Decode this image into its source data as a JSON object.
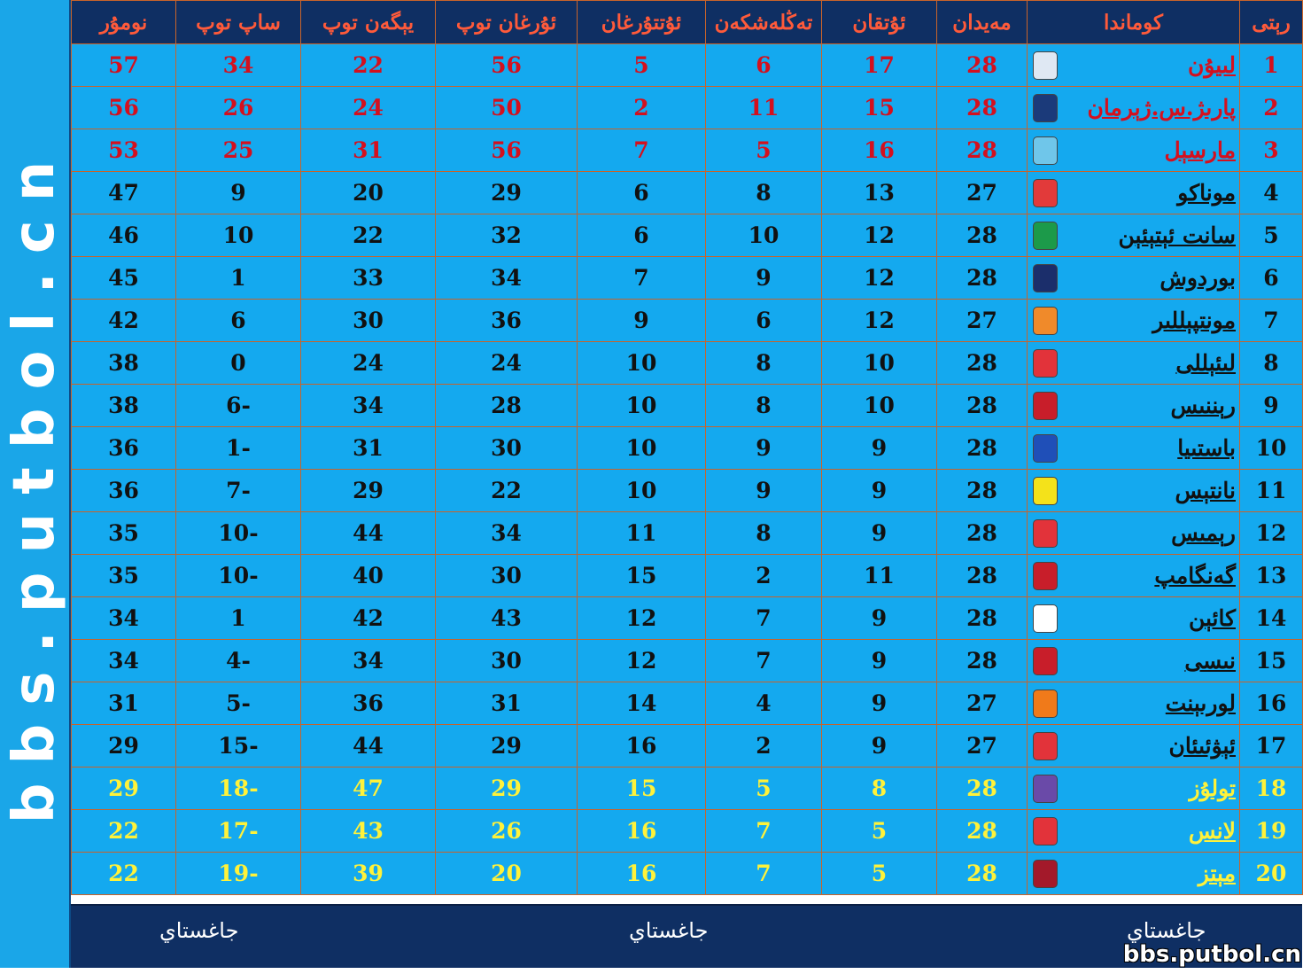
{
  "side_watermark": "bbs.putbol.cn",
  "headers": {
    "points": "نومۇر",
    "goal_diff": "ساپ توپ",
    "goals_against": "يېگەن توپ",
    "goals_for": "ئۇرغان توپ",
    "lost": "ئۇتتۇرغان",
    "drawn": "تەڭلەشكەن",
    "won": "ئۇتقان",
    "played": "مەيدان",
    "team": "كوماندا",
    "rank": "رېتى"
  },
  "rows": [
    {
      "rank": "1",
      "team": "لىيۇن",
      "played": "28",
      "won": "17",
      "drawn": "6",
      "lost": "5",
      "gf": "56",
      "ga": "22",
      "gd": "34",
      "pts": "57",
      "style": "red",
      "logo_color": "#dfe8f3"
    },
    {
      "rank": "2",
      "team": "پارىژ.س.ژېرمان",
      "played": "28",
      "won": "15",
      "drawn": "11",
      "lost": "2",
      "gf": "50",
      "ga": "24",
      "gd": "26",
      "pts": "56",
      "style": "red",
      "logo_color": "#1b3a7a"
    },
    {
      "rank": "3",
      "team": "مارسېل",
      "played": "28",
      "won": "16",
      "drawn": "5",
      "lost": "7",
      "gf": "56",
      "ga": "31",
      "gd": "25",
      "pts": "53",
      "style": "red",
      "logo_color": "#6fc6ea"
    },
    {
      "rank": "4",
      "team": "موناكو",
      "played": "27",
      "won": "13",
      "drawn": "8",
      "lost": "6",
      "gf": "29",
      "ga": "20",
      "gd": "9",
      "pts": "47",
      "style": "",
      "logo_color": "#e23a3a"
    },
    {
      "rank": "5",
      "team": "سانت ئېتېئېن",
      "played": "28",
      "won": "12",
      "drawn": "10",
      "lost": "6",
      "gf": "32",
      "ga": "22",
      "gd": "10",
      "pts": "46",
      "style": "",
      "logo_color": "#1c9a4a"
    },
    {
      "rank": "6",
      "team": "بوردوش",
      "played": "28",
      "won": "12",
      "drawn": "9",
      "lost": "7",
      "gf": "34",
      "ga": "33",
      "gd": "1",
      "pts": "45",
      "style": "",
      "logo_color": "#1b2e6b"
    },
    {
      "rank": "7",
      "team": "مونتپېللىر",
      "played": "27",
      "won": "12",
      "drawn": "6",
      "lost": "9",
      "gf": "36",
      "ga": "30",
      "gd": "6",
      "pts": "42",
      "style": "",
      "logo_color": "#f08a2a"
    },
    {
      "rank": "8",
      "team": "لىئېللى",
      "played": "28",
      "won": "10",
      "drawn": "8",
      "lost": "10",
      "gf": "24",
      "ga": "24",
      "gd": "0",
      "pts": "38",
      "style": "",
      "logo_color": "#e2333a"
    },
    {
      "rank": "9",
      "team": "رېننىس",
      "played": "28",
      "won": "10",
      "drawn": "8",
      "lost": "10",
      "gf": "28",
      "ga": "34",
      "gd": "6-",
      "pts": "38",
      "style": "",
      "logo_color": "#c81e2a"
    },
    {
      "rank": "10",
      "team": "باستىيا",
      "played": "28",
      "won": "9",
      "drawn": "9",
      "lost": "10",
      "gf": "30",
      "ga": "31",
      "gd": "1-",
      "pts": "36",
      "style": "",
      "logo_color": "#1f4fb8"
    },
    {
      "rank": "11",
      "team": "نانتېس",
      "played": "28",
      "won": "9",
      "drawn": "9",
      "lost": "10",
      "gf": "22",
      "ga": "29",
      "gd": "7-",
      "pts": "36",
      "style": "",
      "logo_color": "#f4e21a"
    },
    {
      "rank": "12",
      "team": "رېمىس",
      "played": "28",
      "won": "9",
      "drawn": "8",
      "lost": "11",
      "gf": "34",
      "ga": "44",
      "gd": "10-",
      "pts": "35",
      "style": "",
      "logo_color": "#e2333a"
    },
    {
      "rank": "13",
      "team": "گەنگامپ",
      "played": "28",
      "won": "11",
      "drawn": "2",
      "lost": "15",
      "gf": "30",
      "ga": "40",
      "gd": "10-",
      "pts": "35",
      "style": "",
      "logo_color": "#c81e2a"
    },
    {
      "rank": "14",
      "team": "كائېن",
      "played": "28",
      "won": "9",
      "drawn": "7",
      "lost": "12",
      "gf": "43",
      "ga": "42",
      "gd": "1",
      "pts": "34",
      "style": "",
      "logo_color": "#ffffff"
    },
    {
      "rank": "15",
      "team": "نىسى",
      "played": "28",
      "won": "9",
      "drawn": "7",
      "lost": "12",
      "gf": "30",
      "ga": "34",
      "gd": "4-",
      "pts": "34",
      "style": "",
      "logo_color": "#c81e2a"
    },
    {
      "rank": "16",
      "team": "لورىېنت",
      "played": "27",
      "won": "9",
      "drawn": "4",
      "lost": "14",
      "gf": "31",
      "ga": "36",
      "gd": "5-",
      "pts": "31",
      "style": "",
      "logo_color": "#f07a1a"
    },
    {
      "rank": "17",
      "team": "ئېۋئىئان",
      "played": "27",
      "won": "9",
      "drawn": "2",
      "lost": "16",
      "gf": "29",
      "ga": "44",
      "gd": "15-",
      "pts": "29",
      "style": "",
      "logo_color": "#e2333a"
    },
    {
      "rank": "18",
      "team": "تولۇز",
      "played": "28",
      "won": "8",
      "drawn": "5",
      "lost": "15",
      "gf": "29",
      "ga": "47",
      "gd": "18-",
      "pts": "29",
      "style": "yel",
      "logo_color": "#6a4aa8"
    },
    {
      "rank": "19",
      "team": "لانس",
      "played": "28",
      "won": "5",
      "drawn": "7",
      "lost": "16",
      "gf": "26",
      "ga": "43",
      "gd": "17-",
      "pts": "22",
      "style": "yel",
      "logo_color": "#e2333a"
    },
    {
      "rank": "20",
      "team": "مېتز",
      "played": "28",
      "won": "5",
      "drawn": "7",
      "lost": "16",
      "gf": "20",
      "ga": "39",
      "gd": "19-",
      "pts": "22",
      "style": "yel",
      "logo_color": "#a3192a"
    }
  ],
  "footer": {
    "left_label": "جاغستاي",
    "center_label": "جاغستاي",
    "right_label": "جاغستاي",
    "watermark": "bbs.putbol.cn"
  }
}
